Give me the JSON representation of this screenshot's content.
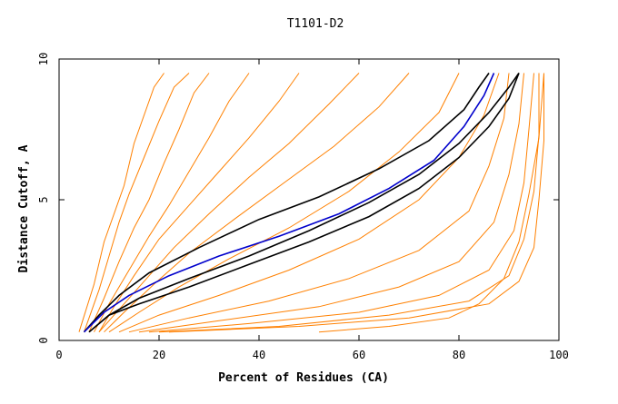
{
  "chart_data": {
    "type": "line",
    "title": "T1101-D2",
    "xlabel": "Percent of Residues (CA)",
    "ylabel": "Distance Cutoff, A",
    "xlim": [
      0,
      100
    ],
    "ylim": [
      0,
      10
    ],
    "xticks": [
      0,
      20,
      40,
      60,
      80,
      100
    ],
    "yticks": [
      0,
      5,
      10
    ],
    "grid": false,
    "legend": "none",
    "colors": {
      "models": "#ff8000",
      "highlight": "#000000",
      "reference": "#0000cc"
    },
    "series": [
      {
        "group": "models",
        "x": [
          4,
          7,
          9,
          11,
          13,
          15,
          17,
          19,
          21
        ],
        "y": [
          0.3,
          2,
          3.5,
          4.5,
          5.5,
          7,
          8,
          9,
          9.5
        ]
      },
      {
        "group": "models",
        "x": [
          5,
          8,
          10,
          12,
          14,
          17,
          20,
          23,
          26
        ],
        "y": [
          0.3,
          1.8,
          3,
          4.2,
          5.2,
          6.5,
          7.8,
          9,
          9.5
        ]
      },
      {
        "group": "models",
        "x": [
          6,
          9,
          12,
          15,
          18,
          21,
          24,
          27,
          30
        ],
        "y": [
          0.3,
          1.5,
          2.8,
          4,
          5,
          6.3,
          7.5,
          8.8,
          9.5
        ]
      },
      {
        "group": "models",
        "x": [
          7,
          10,
          14,
          18,
          22,
          26,
          30,
          34,
          38
        ],
        "y": [
          0.3,
          1.3,
          2.5,
          3.7,
          4.8,
          6,
          7.2,
          8.5,
          9.5
        ]
      },
      {
        "group": "models",
        "x": [
          8,
          11,
          15,
          20,
          26,
          32,
          38,
          44,
          48
        ],
        "y": [
          0.3,
          1.2,
          2.3,
          3.6,
          4.8,
          6,
          7.2,
          8.5,
          9.5
        ]
      },
      {
        "group": "models",
        "x": [
          8,
          12,
          17,
          23,
          30,
          38,
          46,
          54,
          60
        ],
        "y": [
          0.3,
          1.1,
          2.1,
          3.3,
          4.5,
          5.8,
          7,
          8.4,
          9.5
        ]
      },
      {
        "group": "models",
        "x": [
          9,
          13,
          19,
          26,
          35,
          45,
          55,
          64,
          70
        ],
        "y": [
          0.3,
          1,
          2,
          3.1,
          4.3,
          5.6,
          6.9,
          8.3,
          9.5
        ]
      },
      {
        "group": "models",
        "x": [
          10,
          16,
          24,
          34,
          46,
          58,
          68,
          76,
          80
        ],
        "y": [
          0.3,
          1,
          1.9,
          2.9,
          4,
          5.3,
          6.7,
          8.1,
          9.5
        ]
      },
      {
        "group": "models",
        "x": [
          12,
          20,
          32,
          46,
          60,
          72,
          80,
          85,
          88
        ],
        "y": [
          0.3,
          0.9,
          1.6,
          2.5,
          3.6,
          5,
          6.5,
          8,
          9.5
        ]
      },
      {
        "group": "models",
        "x": [
          14,
          26,
          42,
          58,
          72,
          82,
          86,
          89,
          90
        ],
        "y": [
          0.3,
          0.8,
          1.4,
          2.2,
          3.2,
          4.6,
          6.2,
          7.9,
          9.5
        ]
      },
      {
        "group": "models",
        "x": [
          16,
          32,
          52,
          68,
          80,
          87,
          90,
          92,
          93
        ],
        "y": [
          0.3,
          0.7,
          1.2,
          1.9,
          2.8,
          4.2,
          5.9,
          7.7,
          9.5
        ]
      },
      {
        "group": "models",
        "x": [
          18,
          38,
          60,
          76,
          86,
          91,
          93,
          94,
          95
        ],
        "y": [
          0.3,
          0.6,
          1,
          1.6,
          2.5,
          3.9,
          5.6,
          7.5,
          9.5
        ]
      },
      {
        "group": "models",
        "x": [
          20,
          44,
          66,
          82,
          90,
          93,
          95,
          96,
          96
        ],
        "y": [
          0.3,
          0.5,
          0.9,
          1.4,
          2.3,
          3.6,
          5.3,
          7.3,
          9.5
        ]
      },
      {
        "group": "models",
        "x": [
          22,
          48,
          70,
          86,
          92,
          95,
          96,
          97,
          97
        ],
        "y": [
          0.3,
          0.5,
          0.8,
          1.3,
          2.1,
          3.3,
          5,
          7.1,
          9.5
        ]
      },
      {
        "group": "models",
        "x": [
          52,
          66,
          78,
          84,
          89,
          92,
          94,
          96,
          97
        ],
        "y": [
          0.3,
          0.5,
          0.8,
          1.3,
          2.2,
          3.5,
          5.2,
          7.2,
          9.5
        ]
      },
      {
        "group": "highlight",
        "x": [
          5,
          8,
          12,
          18,
          28,
          40,
          52,
          64,
          74,
          81,
          84,
          86
        ],
        "y": [
          0.3,
          0.9,
          1.6,
          2.4,
          3.3,
          4.3,
          5.1,
          6.1,
          7.1,
          8.2,
          9,
          9.5
        ]
      },
      {
        "group": "highlight",
        "x": [
          6,
          10,
          16,
          26,
          38,
          50,
          62,
          72,
          80,
          86,
          90,
          92
        ],
        "y": [
          0.3,
          0.9,
          1.3,
          1.9,
          2.7,
          3.5,
          4.4,
          5.4,
          6.5,
          7.6,
          8.6,
          9.5
        ]
      },
      {
        "group": "highlight",
        "x": [
          6,
          10,
          16,
          26,
          38,
          50,
          62,
          72,
          80,
          86,
          90,
          92
        ],
        "y": [
          0.3,
          0.9,
          1.5,
          2.2,
          3,
          3.9,
          4.9,
          5.9,
          7,
          8.1,
          9,
          9.5
        ]
      },
      {
        "group": "reference",
        "x": [
          5,
          9,
          14,
          22,
          32,
          44,
          56,
          66,
          75,
          81,
          85,
          87
        ],
        "y": [
          0.3,
          1,
          1.6,
          2.3,
          3,
          3.7,
          4.5,
          5.4,
          6.4,
          7.6,
          8.7,
          9.5
        ]
      }
    ]
  }
}
